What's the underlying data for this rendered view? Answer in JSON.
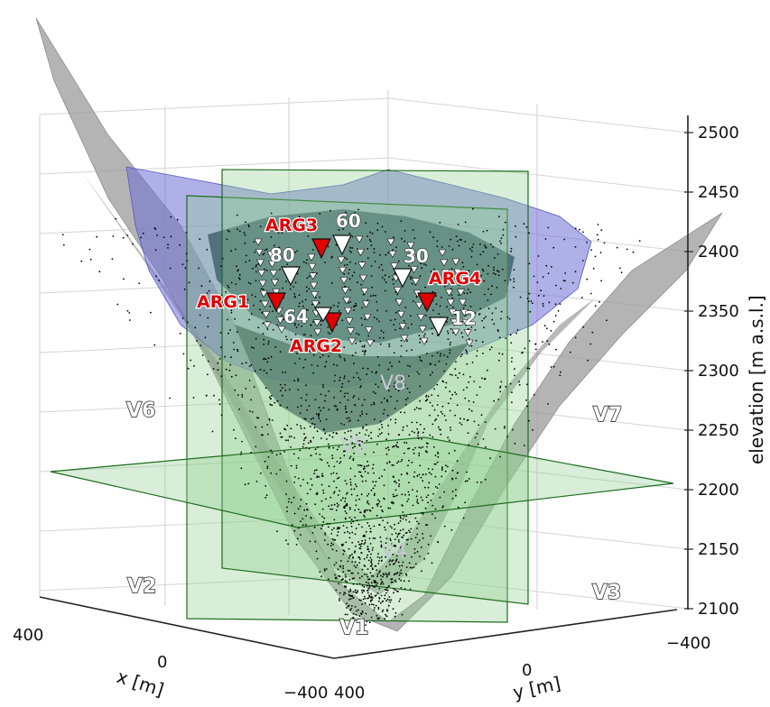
{
  "chart_data": {
    "type": "scatter",
    "zlabel": "elevation [m a.s.l.]",
    "xlabel": "x [m]",
    "ylabel": "y [m]",
    "zlim": [
      2100,
      2500
    ],
    "xlim": [
      -400,
      400
    ],
    "ylim": [
      -400,
      400
    ],
    "z_ticks": [
      "2500",
      "2450",
      "2400",
      "2350",
      "2300",
      "2250",
      "2200",
      "2150",
      "2100"
    ],
    "x_ticks": [
      "400",
      "0",
      "−400"
    ],
    "y_ticks": [
      "400",
      "0",
      "−400"
    ],
    "grid": true,
    "region_labels": [
      "V1",
      "V2",
      "V3",
      "V4",
      "V5",
      "V6",
      "V7",
      "V8"
    ],
    "stations": [
      {
        "name": "ARG1",
        "color": "#ff0000"
      },
      {
        "name": "ARG2",
        "color": "#ff0000"
      },
      {
        "name": "ARG3",
        "color": "#ff0000"
      },
      {
        "name": "ARG4",
        "color": "#ff0000"
      }
    ],
    "array_labels": [
      "80",
      "60",
      "64",
      "30",
      "12"
    ],
    "surface_colors": {
      "topography": "#9a9a9a",
      "glacier": "#6f6fd8",
      "planes": "#8fcf8f",
      "events": "#000000"
    }
  }
}
